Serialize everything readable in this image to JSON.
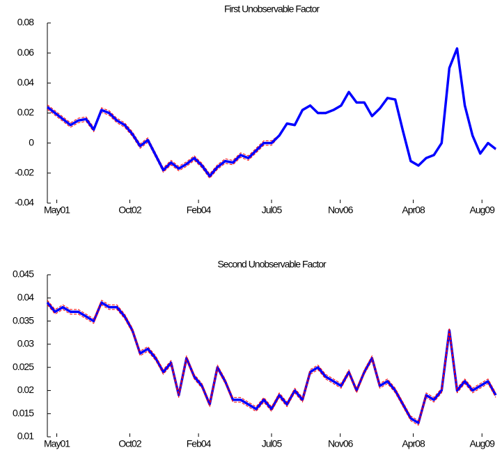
{
  "chart_data": [
    {
      "type": "line",
      "title": "First Unobservable Factor",
      "x": [
        2001.15,
        2001.3,
        2001.45,
        2001.6,
        2001.75,
        2001.9,
        2002.05,
        2002.2,
        2002.35,
        2002.5,
        2002.65,
        2002.8,
        2002.95,
        2003.1,
        2003.25,
        2003.4,
        2003.55,
        2003.7,
        2003.85,
        2004,
        2004.15,
        2004.3,
        2004.45,
        2004.6,
        2004.75,
        2004.9,
        2005.05,
        2005.2,
        2005.35,
        2005.5,
        2005.65,
        2005.8,
        2005.95,
        2006.1,
        2006.25,
        2006.4,
        2006.55,
        2006.7,
        2006.85,
        2007,
        2007.15,
        2007.3,
        2007.45,
        2007.6,
        2007.75,
        2007.9,
        2008.05,
        2008.2,
        2008.35,
        2008.5,
        2008.65,
        2008.8,
        2008.95,
        2009.1,
        2009.25,
        2009.4,
        2009.55,
        2009.7,
        2009.85
      ],
      "xlim": [
        2001.15,
        2009.85
      ],
      "xticks": [
        {
          "value": 2001.333,
          "label": "May01"
        },
        {
          "value": 2002.75,
          "label": "Oct02"
        },
        {
          "value": 2004.083,
          "label": "Feb04"
        },
        {
          "value": 2005.5,
          "label": "Jul05"
        },
        {
          "value": 2006.833,
          "label": "Nov06"
        },
        {
          "value": 2008.25,
          "label": "Apr08"
        },
        {
          "value": 2009.583,
          "label": "Aug09"
        }
      ],
      "ylim": [
        -0.04,
        0.08
      ],
      "yticks": [
        -0.04,
        -0.02,
        0,
        0.02,
        0.04,
        0.06,
        0.08
      ],
      "series": [
        {
          "color": "#ff0000",
          "linestyle": "dashed",
          "values": [
            0.0255,
            0.0215,
            0.0175,
            0.0135,
            0.0165,
            0.0175,
            0.0105,
            0.0235,
            0.0215,
            0.0165,
            0.0135,
            0.0075,
            -0.0005,
            0.0035,
            -0.0065,
            -0.0165,
            -0.0115,
            -0.0155,
            -0.0125,
            -0.0085,
            -0.0135,
            -0.0205,
            -0.0145,
            -0.0105,
            -0.0115,
            -0.0065,
            -0.0085,
            -0.0035,
            0.0015,
            0.0015,
            0.0055,
            0.0135,
            0.0125,
            0.0225,
            0.0255,
            0.0205,
            0.0205,
            0.0225,
            0.0255,
            0.0345,
            0.0275,
            0.0275,
            0.0185,
            0.0235,
            0.0305,
            0.0295,
            0.0085,
            -0.0115,
            -0.0145,
            -0.0095,
            -0.0075,
            0.0005,
            0.0505,
            0.0635,
            0.0255,
            0.0055,
            -0.0065,
            0.0005,
            -0.0035
          ]
        },
        {
          "color": "#ff0000",
          "linestyle": "dashed",
          "values": [
            0.0225,
            0.0185,
            0.0145,
            0.0105,
            0.0135,
            0.0145,
            0.0075,
            0.0205,
            0.0185,
            0.0135,
            0.0105,
            0.0045,
            -0.0035,
            0.0005,
            -0.0095,
            -0.0195,
            -0.0145,
            -0.0185,
            -0.0155,
            -0.0115,
            -0.0165,
            -0.0235,
            -0.0175,
            -0.0135,
            -0.0145,
            -0.0095,
            -0.0115,
            -0.0065,
            -0.0015,
            -0.0015,
            0.0045,
            0.0125,
            0.0115,
            0.0215,
            0.0245,
            0.0195,
            0.0195,
            0.0215,
            0.0245,
            0.0335,
            0.0265,
            0.0265,
            0.0175,
            0.0225,
            0.0295,
            0.0285,
            0.0075,
            -0.0125,
            -0.0155,
            -0.0105,
            -0.0085,
            -0.0005,
            0.0495,
            0.0625,
            0.0245,
            0.0045,
            -0.0075,
            -0.0005,
            -0.0045
          ]
        },
        {
          "color": "#0000ff",
          "linestyle": "solid",
          "values": [
            0.024,
            0.02,
            0.016,
            0.012,
            0.015,
            0.016,
            0.009,
            0.022,
            0.02,
            0.015,
            0.012,
            0.006,
            -0.002,
            0.002,
            -0.008,
            -0.018,
            -0.013,
            -0.017,
            -0.014,
            -0.01,
            -0.015,
            -0.022,
            -0.016,
            -0.012,
            -0.013,
            -0.008,
            -0.01,
            -0.005,
            0,
            0,
            0.005,
            0.013,
            0.012,
            0.022,
            0.025,
            0.02,
            0.02,
            0.022,
            0.025,
            0.034,
            0.027,
            0.027,
            0.018,
            0.023,
            0.03,
            0.029,
            0.008,
            -0.012,
            -0.015,
            -0.01,
            -0.008,
            0,
            0.05,
            0.063,
            0.025,
            0.005,
            -0.007,
            0,
            -0.004
          ]
        }
      ]
    },
    {
      "type": "line",
      "title": "Second Unobservable Factor",
      "x": [
        2001.15,
        2001.3,
        2001.45,
        2001.6,
        2001.75,
        2001.9,
        2002.05,
        2002.2,
        2002.35,
        2002.5,
        2002.65,
        2002.8,
        2002.95,
        2003.1,
        2003.25,
        2003.4,
        2003.55,
        2003.7,
        2003.85,
        2004,
        2004.15,
        2004.3,
        2004.45,
        2004.6,
        2004.75,
        2004.9,
        2005.05,
        2005.2,
        2005.35,
        2005.5,
        2005.65,
        2005.8,
        2005.95,
        2006.1,
        2006.25,
        2006.4,
        2006.55,
        2006.7,
        2006.85,
        2007,
        2007.15,
        2007.3,
        2007.45,
        2007.6,
        2007.75,
        2007.9,
        2008.05,
        2008.2,
        2008.35,
        2008.5,
        2008.65,
        2008.8,
        2008.95,
        2009.1,
        2009.25,
        2009.4,
        2009.55,
        2009.7,
        2009.85
      ],
      "xlim": [
        2001.15,
        2009.85
      ],
      "xticks": [
        {
          "value": 2001.333,
          "label": "May01"
        },
        {
          "value": 2002.75,
          "label": "Oct02"
        },
        {
          "value": 2004.083,
          "label": "Feb04"
        },
        {
          "value": 2005.5,
          "label": "Jul05"
        },
        {
          "value": 2006.833,
          "label": "Nov06"
        },
        {
          "value": 2008.25,
          "label": "Apr08"
        },
        {
          "value": 2009.583,
          "label": "Aug09"
        }
      ],
      "ylim": [
        0.01,
        0.045
      ],
      "yticks": [
        0.01,
        0.015,
        0.02,
        0.025,
        0.03,
        0.035,
        0.04,
        0.045
      ],
      "series": [
        {
          "color": "#0000ff",
          "linestyle": "solid",
          "values": [
            0.039,
            0.037,
            0.038,
            0.037,
            0.037,
            0.036,
            0.035,
            0.039,
            0.038,
            0.038,
            0.036,
            0.033,
            0.028,
            0.029,
            0.027,
            0.024,
            0.026,
            0.019,
            0.027,
            0.023,
            0.021,
            0.017,
            0.025,
            0.022,
            0.018,
            0.018,
            0.017,
            0.016,
            0.018,
            0.016,
            0.019,
            0.017,
            0.02,
            0.018,
            0.024,
            0.025,
            0.023,
            0.022,
            0.021,
            0.024,
            0.02,
            0.024,
            0.027,
            0.021,
            0.022,
            0.02,
            0.017,
            0.014,
            0.013,
            0.019,
            0.018,
            0.02,
            0.033,
            0.02,
            0.022,
            0.02,
            0.021,
            0.022,
            0.019
          ]
        },
        {
          "color": "#ff0000",
          "linestyle": "dashed",
          "values": [
            0.0395,
            0.0375,
            0.0385,
            0.0375,
            0.0375,
            0.0365,
            0.0355,
            0.0395,
            0.0385,
            0.0385,
            0.0365,
            0.0335,
            0.0285,
            0.0295,
            0.0275,
            0.0245,
            0.0265,
            0.0195,
            0.0275,
            0.0235,
            0.0215,
            0.0175,
            0.0255,
            0.0225,
            0.0185,
            0.0185,
            0.0175,
            0.0165,
            0.0185,
            0.0165,
            0.0195,
            0.0175,
            0.0205,
            0.0185,
            0.0245,
            0.0255,
            0.0235,
            0.0225,
            0.0215,
            0.0245,
            0.0205,
            0.0245,
            0.0275,
            0.0215,
            0.0225,
            0.0205,
            0.0175,
            0.0145,
            0.0135,
            0.0195,
            0.0185,
            0.0205,
            0.0335,
            0.0205,
            0.0225,
            0.0205,
            0.0215,
            0.0225,
            0.0195
          ]
        },
        {
          "color": "#ff0000",
          "linestyle": "dashed",
          "values": [
            0.0385,
            0.0365,
            0.0375,
            0.0365,
            0.0365,
            0.0355,
            0.0345,
            0.0385,
            0.0375,
            0.0375,
            0.0355,
            0.0325,
            0.0275,
            0.0285,
            0.0265,
            0.0235,
            0.0255,
            0.0185,
            0.0265,
            0.0225,
            0.0205,
            0.0165,
            0.0245,
            0.0215,
            0.0175,
            0.0175,
            0.0165,
            0.0155,
            0.0175,
            0.0155,
            0.0185,
            0.0165,
            0.0195,
            0.0175,
            0.0235,
            0.0245,
            0.0225,
            0.0215,
            0.0205,
            0.0235,
            0.0195,
            0.0235,
            0.0265,
            0.0205,
            0.0215,
            0.0195,
            0.0165,
            0.0135,
            0.0125,
            0.0185,
            0.0175,
            0.0195,
            0.0325,
            0.0195,
            0.0215,
            0.0195,
            0.0205,
            0.0215,
            0.0185
          ]
        }
      ]
    }
  ]
}
